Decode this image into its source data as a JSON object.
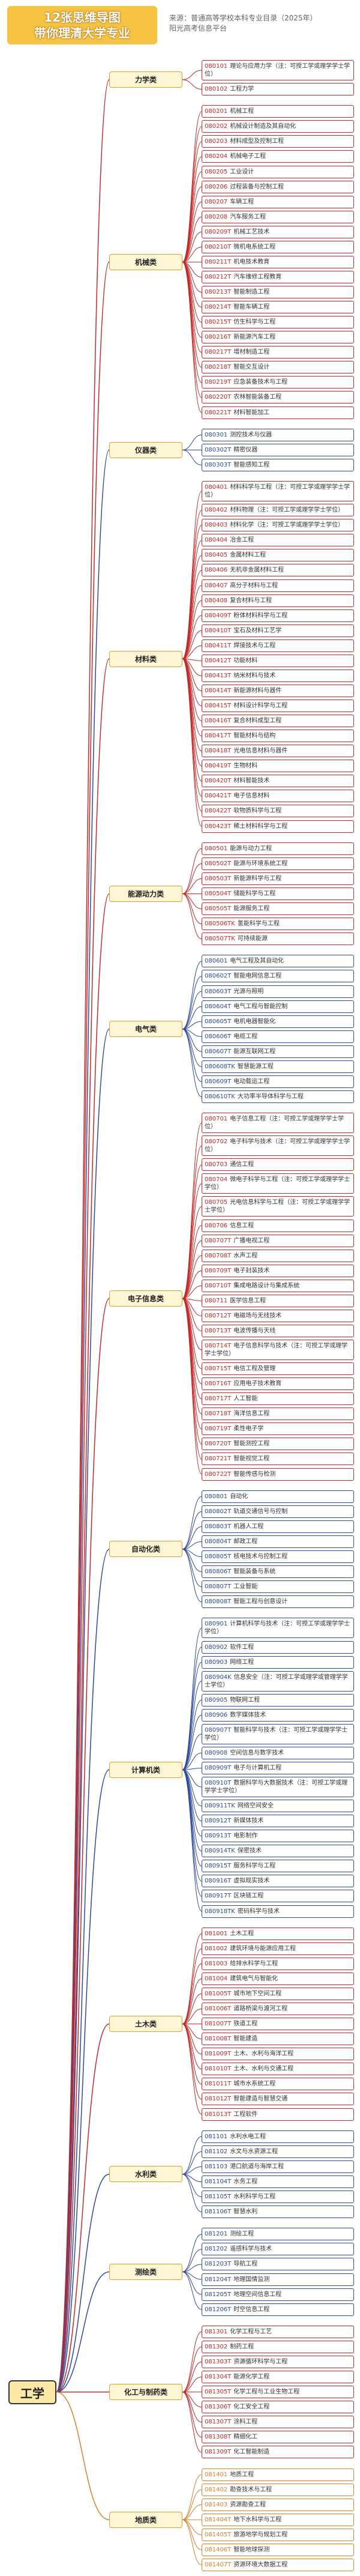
{
  "header": {
    "title_line1": "12张思维导图",
    "title_line2": "带你理清大学专业",
    "source": "来源：普通高等学校本科专业目录（2025年）",
    "source_line2": "阳光高考信息平台"
  },
  "root": "工学",
  "categories": [
    {
      "name": "力学类",
      "color": "#c62828",
      "majors": [
        {
          "code": "080101",
          "name": "理论与应用力学（注：可授工学或理学学士学位）"
        },
        {
          "code": "080102",
          "name": "工程力学"
        }
      ]
    },
    {
      "name": "机械类",
      "color": "#c62828",
      "majors": [
        {
          "code": "080201",
          "name": "机械工程"
        },
        {
          "code": "080202",
          "name": "机械设计制造及其自动化"
        },
        {
          "code": "080203",
          "name": "材料成型及控制工程"
        },
        {
          "code": "080204",
          "name": "机械电子工程"
        },
        {
          "code": "080205",
          "name": "工业设计"
        },
        {
          "code": "080206",
          "name": "过程装备与控制工程"
        },
        {
          "code": "080207",
          "name": "车辆工程"
        },
        {
          "code": "080208",
          "name": "汽车服务工程"
        },
        {
          "code": "080209T",
          "name": "机械工艺技术"
        },
        {
          "code": "080210T",
          "name": "微机电系统工程"
        },
        {
          "code": "080211T",
          "name": "机电技术教育"
        },
        {
          "code": "080212T",
          "name": "汽车维修工程教育"
        },
        {
          "code": "080213T",
          "name": "智能制造工程"
        },
        {
          "code": "080214T",
          "name": "智能车辆工程"
        },
        {
          "code": "080215T",
          "name": "仿生科学与工程"
        },
        {
          "code": "080216T",
          "name": "新能源汽车工程"
        },
        {
          "code": "080217T",
          "name": "增材制造工程"
        },
        {
          "code": "080218T",
          "name": "智能交互设计"
        },
        {
          "code": "080219T",
          "name": "应急装备技术与工程"
        },
        {
          "code": "080220T",
          "name": "农林智能装备工程"
        },
        {
          "code": "080221T",
          "name": "材料智能加工"
        }
      ]
    },
    {
      "name": "仪器类",
      "color": "#2e4a9e",
      "majors": [
        {
          "code": "080301",
          "name": "测控技术与仪器"
        },
        {
          "code": "080302T",
          "name": "精密仪器"
        },
        {
          "code": "080303T",
          "name": "智能感知工程"
        }
      ]
    },
    {
      "name": "材料类",
      "color": "#c62828",
      "majors": [
        {
          "code": "080401",
          "name": "材料科学与工程（注：可授工学或理学学士学位）"
        },
        {
          "code": "080402",
          "name": "材料物理（注：可授工学或理学学士学位）"
        },
        {
          "code": "080403",
          "name": "材料化学（注：可授工学或理学学士学位）"
        },
        {
          "code": "080404",
          "name": "冶金工程"
        },
        {
          "code": "080405",
          "name": "金属材料工程"
        },
        {
          "code": "080406",
          "name": "无机非金属材料工程"
        },
        {
          "code": "080407",
          "name": "高分子材料与工程"
        },
        {
          "code": "080408",
          "name": "复合材料与工程"
        },
        {
          "code": "080409T",
          "name": "粉体材料科学与工程"
        },
        {
          "code": "080410T",
          "name": "宝石及材料工艺学"
        },
        {
          "code": "080411T",
          "name": "焊接技术与工程"
        },
        {
          "code": "080412T",
          "name": "功能材料"
        },
        {
          "code": "080413T",
          "name": "纳米材料与技术"
        },
        {
          "code": "080414T",
          "name": "新能源材料与器件"
        },
        {
          "code": "080415T",
          "name": "材料设计科学与工程"
        },
        {
          "code": "080416T",
          "name": "复合材料成型工程"
        },
        {
          "code": "080417T",
          "name": "智能材料与结构"
        },
        {
          "code": "080418T",
          "name": "光电信息材料与器件"
        },
        {
          "code": "080419T",
          "name": "生物材料"
        },
        {
          "code": "080420T",
          "name": "材料智能技术"
        },
        {
          "code": "080421T",
          "name": "电子信息材料"
        },
        {
          "code": "080422T",
          "name": "软物质科学与工程"
        },
        {
          "code": "080423T",
          "name": "稀土材料科学与工程"
        }
      ]
    },
    {
      "name": "能源动力类",
      "color": "#c62828",
      "majors": [
        {
          "code": "080501",
          "name": "能源与动力工程"
        },
        {
          "code": "080502T",
          "name": "能源与环境系统工程"
        },
        {
          "code": "080503T",
          "name": "新能源科学与工程"
        },
        {
          "code": "080504T",
          "name": "储能科学与工程"
        },
        {
          "code": "080505T",
          "name": "能源服务工程"
        },
        {
          "code": "080506TK",
          "name": "氢能科学与工程"
        },
        {
          "code": "080507TK",
          "name": "可持续能源"
        }
      ]
    },
    {
      "name": "电气类",
      "color": "#2e4a9e",
      "majors": [
        {
          "code": "080601",
          "name": "电气工程及其自动化"
        },
        {
          "code": "080602T",
          "name": "智能电网信息工程"
        },
        {
          "code": "080603T",
          "name": "光源与照明"
        },
        {
          "code": "080604T",
          "name": "电气工程与智能控制"
        },
        {
          "code": "080605T",
          "name": "电机电器智能化"
        },
        {
          "code": "080606T",
          "name": "电缆工程"
        },
        {
          "code": "080607T",
          "name": "能源互联网工程"
        },
        {
          "code": "080608TK",
          "name": "智慧能源工程"
        },
        {
          "code": "080609T",
          "name": "电动载运工程"
        },
        {
          "code": "080610TK",
          "name": "大功率半导体科学与工程"
        }
      ]
    },
    {
      "name": "电子信息类",
      "color": "#c62828",
      "majors": [
        {
          "code": "080701",
          "name": "电子信息工程（注：可授工学或理学学士学位）"
        },
        {
          "code": "080702",
          "name": "电子科学与技术（注：可授工学或理学学士学位）"
        },
        {
          "code": "080703",
          "name": "通信工程"
        },
        {
          "code": "080704",
          "name": "微电子科学与工程（注：可授工学或理学学士学位）"
        },
        {
          "code": "080705",
          "name": "光电信息科学与工程（注：可授工学或理学学士学位）"
        },
        {
          "code": "080706",
          "name": "信息工程"
        },
        {
          "code": "080707T",
          "name": "广播电视工程"
        },
        {
          "code": "080708T",
          "name": "水声工程"
        },
        {
          "code": "080709T",
          "name": "电子封装技术"
        },
        {
          "code": "080710T",
          "name": "集成电路设计与集成系统"
        },
        {
          "code": "080711",
          "name": "医学信息工程"
        },
        {
          "code": "080712T",
          "name": "电磁场与无线技术"
        },
        {
          "code": "080713T",
          "name": "电波传播与天线"
        },
        {
          "code": "080714T",
          "name": "电子信息科学与技术（注：可授工学或理学学士学位）"
        },
        {
          "code": "080715T",
          "name": "电信工程及管理"
        },
        {
          "code": "080716T",
          "name": "应用电子技术教育"
        },
        {
          "code": "080717T",
          "name": "人工智能"
        },
        {
          "code": "080718T",
          "name": "海洋信息工程"
        },
        {
          "code": "080719T",
          "name": "柔性电子学"
        },
        {
          "code": "080720T",
          "name": "智能测控工程"
        },
        {
          "code": "080721T",
          "name": "智能视觉工程"
        },
        {
          "code": "080722T",
          "name": "智能传感与检测"
        }
      ]
    },
    {
      "name": "自动化类",
      "color": "#2e4a9e",
      "majors": [
        {
          "code": "080801",
          "name": "自动化"
        },
        {
          "code": "080802T",
          "name": "轨道交通信号与控制"
        },
        {
          "code": "080803T",
          "name": "机器人工程"
        },
        {
          "code": "080804T",
          "name": "邮政工程"
        },
        {
          "code": "080805T",
          "name": "核电技术与控制工程"
        },
        {
          "code": "080806T",
          "name": "智能装备与系统"
        },
        {
          "code": "080807T",
          "name": "工业智能"
        },
        {
          "code": "080808T",
          "name": "智能工程与创意设计"
        }
      ]
    },
    {
      "name": "计算机类",
      "color": "#2e4a9e",
      "majors": [
        {
          "code": "080901",
          "name": "计算机科学与技术（注：可授工学或理学学士学位）"
        },
        {
          "code": "080902",
          "name": "软件工程"
        },
        {
          "code": "080903",
          "name": "网络工程"
        },
        {
          "code": "080904K",
          "name": "信息安全（注：可授工学或理学或管理学学士学位）"
        },
        {
          "code": "080905",
          "name": "物联网工程"
        },
        {
          "code": "080906",
          "name": "数字媒体技术"
        },
        {
          "code": "080907T",
          "name": "智能科学与技术（注：可授工学或理学学士学位）"
        },
        {
          "code": "080908",
          "name": "空间信息与数字技术"
        },
        {
          "code": "080909T",
          "name": "电子与计算机工程"
        },
        {
          "code": "080910T",
          "name": "数据科学与大数据技术（注：可授工学或理学学士学位）"
        },
        {
          "code": "080911TK",
          "name": "网络空间安全"
        },
        {
          "code": "080912T",
          "name": "新媒体技术"
        },
        {
          "code": "080913T",
          "name": "电影制作"
        },
        {
          "code": "080914TK",
          "name": "保密技术"
        },
        {
          "code": "080915T",
          "name": "服务科学与工程"
        },
        {
          "code": "080916T",
          "name": "虚拟现实技术"
        },
        {
          "code": "080917T",
          "name": "区块链工程"
        },
        {
          "code": "080918TK",
          "name": "密码科学与技术"
        }
      ]
    },
    {
      "name": "土木类",
      "color": "#c62828",
      "majors": [
        {
          "code": "081001",
          "name": "土木工程"
        },
        {
          "code": "081002",
          "name": "建筑环境与能源应用工程"
        },
        {
          "code": "081003",
          "name": "给排水科学与工程"
        },
        {
          "code": "081004",
          "name": "建筑电气与智能化"
        },
        {
          "code": "081005T",
          "name": "城市地下空间工程"
        },
        {
          "code": "081006T",
          "name": "道路桥梁与渡河工程"
        },
        {
          "code": "081007T",
          "name": "铁道工程"
        },
        {
          "code": "081008T",
          "name": "智能建造"
        },
        {
          "code": "081009T",
          "name": "土木、水利与海洋工程"
        },
        {
          "code": "081010T",
          "name": "土木、水利与交通工程"
        },
        {
          "code": "081011T",
          "name": "城市水系统工程"
        },
        {
          "code": "081012T",
          "name": "智能建造与智慧交通"
        },
        {
          "code": "081013T",
          "name": "工程软件"
        }
      ]
    },
    {
      "name": "水利类",
      "color": "#2e4a9e",
      "majors": [
        {
          "code": "081101",
          "name": "水利水电工程"
        },
        {
          "code": "081102",
          "name": "水文与水资源工程"
        },
        {
          "code": "081103",
          "name": "港口航道与海岸工程"
        },
        {
          "code": "081104T",
          "name": "水务工程"
        },
        {
          "code": "081105T",
          "name": "水利科学与工程"
        },
        {
          "code": "081106T",
          "name": "智慧水利"
        }
      ]
    },
    {
      "name": "测绘类",
      "color": "#2e4a9e",
      "majors": [
        {
          "code": "081201",
          "name": "测绘工程"
        },
        {
          "code": "081202",
          "name": "遥感科学与技术"
        },
        {
          "code": "081203T",
          "name": "导航工程"
        },
        {
          "code": "081204T",
          "name": "地理国情监测"
        },
        {
          "code": "081205T",
          "name": "地理空间信息工程"
        },
        {
          "code": "081206T",
          "name": "时空信息工程"
        }
      ]
    },
    {
      "name": "化工与制药类",
      "color": "#c62828",
      "majors": [
        {
          "code": "081301",
          "name": "化学工程与工艺"
        },
        {
          "code": "081302",
          "name": "制药工程"
        },
        {
          "code": "081303T",
          "name": "资源循环科学与工程"
        },
        {
          "code": "081304T",
          "name": "能源化学工程"
        },
        {
          "code": "081305T",
          "name": "化学工程与工业生物工程"
        },
        {
          "code": "081306T",
          "name": "化工安全工程"
        },
        {
          "code": "081307T",
          "name": "涂料工程"
        },
        {
          "code": "081308T",
          "name": "精细化工"
        },
        {
          "code": "081309T",
          "name": "化工智能制造"
        }
      ]
    },
    {
      "name": "地质类",
      "color": "#d9822b",
      "majors": [
        {
          "code": "081401",
          "name": "地质工程"
        },
        {
          "code": "081402",
          "name": "勘查技术与工程"
        },
        {
          "code": "081403",
          "name": "资源勘查工程"
        },
        {
          "code": "081404T",
          "name": "地下水科学与工程"
        },
        {
          "code": "081405T",
          "name": "旅游地学与规划工程"
        },
        {
          "code": "081406T",
          "name": "智能地球探测"
        },
        {
          "code": "081407T",
          "name": "资源环境大数据工程"
        }
      ]
    }
  ]
}
